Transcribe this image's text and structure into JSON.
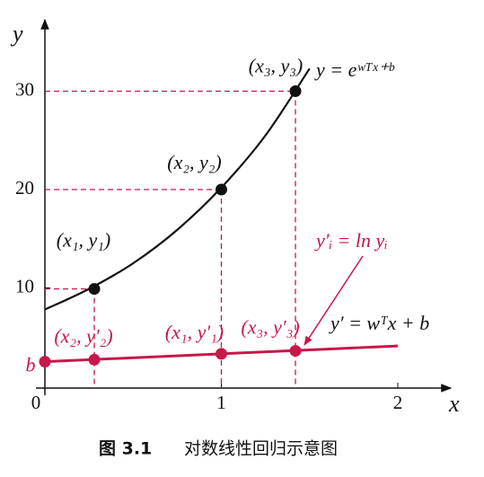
{
  "chart_data": {
    "type": "line",
    "x_label": "x",
    "y_label": "y",
    "xlim": [
      0,
      2.3
    ],
    "ylim": [
      0,
      37
    ],
    "xticks": [
      0,
      1,
      2
    ],
    "yticks": [
      10,
      20,
      30
    ],
    "curve": {
      "color": "#111111",
      "label": "y = eʷᵀˣ⁺ᵇ",
      "x": [
        0,
        0.25,
        0.5,
        0.75,
        1,
        1.25,
        1.5
      ],
      "y": [
        7.8,
        9.9,
        12.5,
        15.9,
        20.2,
        25.5,
        32.3
      ]
    },
    "line": {
      "color": "#c8174a",
      "label": "y′ = wᵀx + b",
      "x": [
        0,
        2
      ],
      "y": [
        2.5,
        4.1
      ]
    },
    "points": {
      "color": "#111111",
      "x": [
        0.28,
        1,
        1.42
      ],
      "y": [
        9.9,
        20,
        30
      ],
      "labels": [
        "(x₁, y₁)",
        "(x₂, y₂)",
        "(x₃, y₃)"
      ]
    },
    "log_points": {
      "color": "#c8174a",
      "x": [
        0,
        0.28,
        1,
        1.42
      ],
      "y": [
        2.5,
        2.7,
        3.3,
        3.6
      ],
      "labels": [
        "b",
        "(x₂, y′₂)",
        "(x₁, y′₁)",
        "(x₃, y′₃)"
      ]
    },
    "annotation": "y′ᵢ = ln yᵢ",
    "figure_number": "图 3.1",
    "caption": "对数线性回归示意图"
  }
}
